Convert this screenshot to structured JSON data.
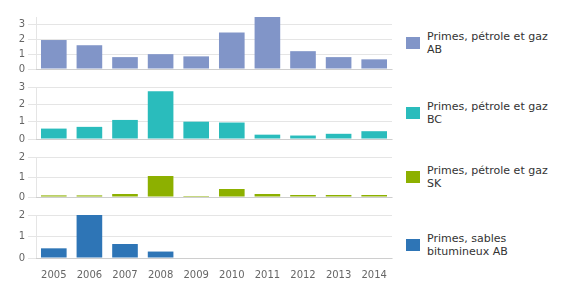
{
  "chart_data": [
    {
      "type": "bar",
      "categories": [
        2005,
        2006,
        2007,
        2008,
        2009,
        2010,
        2011,
        2012,
        2013,
        2014
      ],
      "series": [
        {
          "name": "Primes, pétrole et gaz\nAB",
          "color": "#8195C8",
          "values": [
            1.95,
            1.6,
            0.8,
            1.0,
            0.85,
            2.45,
            3.5,
            1.2,
            0.8,
            0.65
          ]
        }
      ],
      "ylim": [
        0,
        3.5
      ],
      "yticks": [
        0,
        1,
        2,
        3
      ],
      "grid": true,
      "tick_labels": "y",
      "legend": "right"
    },
    {
      "type": "bar",
      "categories": [
        2005,
        2006,
        2007,
        2008,
        2009,
        2010,
        2011,
        2012,
        2013,
        2014
      ],
      "series": [
        {
          "name": "Primes, pétrole et gaz\nBC",
          "color": "#2ABCBC",
          "values": [
            0.6,
            0.7,
            1.1,
            2.75,
            1.0,
            0.95,
            0.25,
            0.2,
            0.3,
            0.45
          ]
        }
      ],
      "ylim": [
        0,
        3.0
      ],
      "yticks": [
        0,
        1,
        2,
        3
      ],
      "grid": true,
      "tick_labels": "y",
      "legend": "right"
    },
    {
      "type": "bar",
      "categories": [
        2005,
        2006,
        2007,
        2008,
        2009,
        2010,
        2011,
        2012,
        2013,
        2014
      ],
      "series": [
        {
          "name": "Primes, pétrole et gaz\nSK",
          "color": "#8DB000",
          "values": [
            0.08,
            0.08,
            0.15,
            1.05,
            0.05,
            0.4,
            0.15,
            0.1,
            0.1,
            0.1
          ]
        }
      ],
      "ylim": [
        0,
        2.0
      ],
      "yticks": [
        0,
        1,
        2
      ],
      "grid": true,
      "tick_labels": "y",
      "legend": "right"
    },
    {
      "type": "bar",
      "categories": [
        2005,
        2006,
        2007,
        2008,
        2009,
        2010,
        2011,
        2012,
        2013,
        2014
      ],
      "series": [
        {
          "name": "Primes, sables\nbitumineux AB",
          "color": "#2E75B6",
          "values": [
            0.45,
            2.0,
            0.65,
            0.3,
            0.0,
            0.0,
            0.0,
            0.0,
            0.0,
            0.0
          ]
        }
      ],
      "ylim": [
        0,
        2.0
      ],
      "yticks": [
        0,
        1,
        2
      ],
      "grid": true,
      "legend": "right"
    }
  ]
}
